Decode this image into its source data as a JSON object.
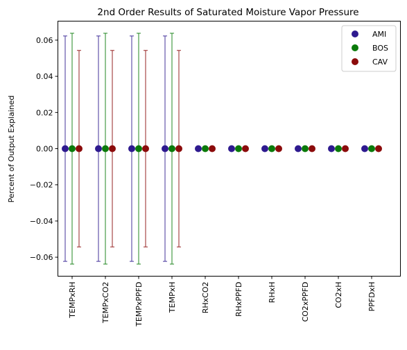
{
  "chart_data": {
    "type": "scatter",
    "title": "2nd Order Results of Saturated Moisture Vapor Pressure",
    "xlabel": "",
    "ylabel": "Percent of Output Explained",
    "categories": [
      "TEMPxRH",
      "TEMPxCO2",
      "TEMPxPPFD",
      "TEMPxH",
      "RHxCO2",
      "RHxPPFD",
      "RHxH",
      "CO2xPPFD",
      "CO2xH",
      "PPFDxH"
    ],
    "ylim": [
      -0.0705,
      0.0705
    ],
    "yticks": [
      -0.06,
      -0.04,
      -0.02,
      0.0,
      0.02,
      0.04,
      0.06
    ],
    "ytick_labels": [
      "−0.06",
      "−0.04",
      "−0.02",
      "0.00",
      "0.02",
      "0.04",
      "0.06"
    ],
    "grid": false,
    "legend_position": "top-right",
    "series": [
      {
        "name": "AMI",
        "color": "#2e1a8f",
        "values": [
          0,
          0,
          0,
          0,
          0,
          0,
          0,
          0,
          0,
          0
        ],
        "errors": [
          0.0623,
          0.0623,
          0.0623,
          0.0623,
          0,
          0,
          0,
          0,
          0,
          0
        ]
      },
      {
        "name": "BOS",
        "color": "#0a7a0a",
        "values": [
          0,
          0,
          0,
          0,
          0,
          0,
          0,
          0,
          0,
          0
        ],
        "errors": [
          0.0638,
          0.0638,
          0.0638,
          0.0638,
          0,
          0,
          0,
          0,
          0,
          0
        ]
      },
      {
        "name": "CAV",
        "color": "#8b0b0b",
        "values": [
          0,
          0,
          0,
          0,
          0,
          0,
          0,
          0,
          0,
          0
        ],
        "errors": [
          0.0543,
          0.0543,
          0.0543,
          0.0543,
          0,
          0,
          0,
          0,
          0,
          0
        ]
      }
    ]
  }
}
